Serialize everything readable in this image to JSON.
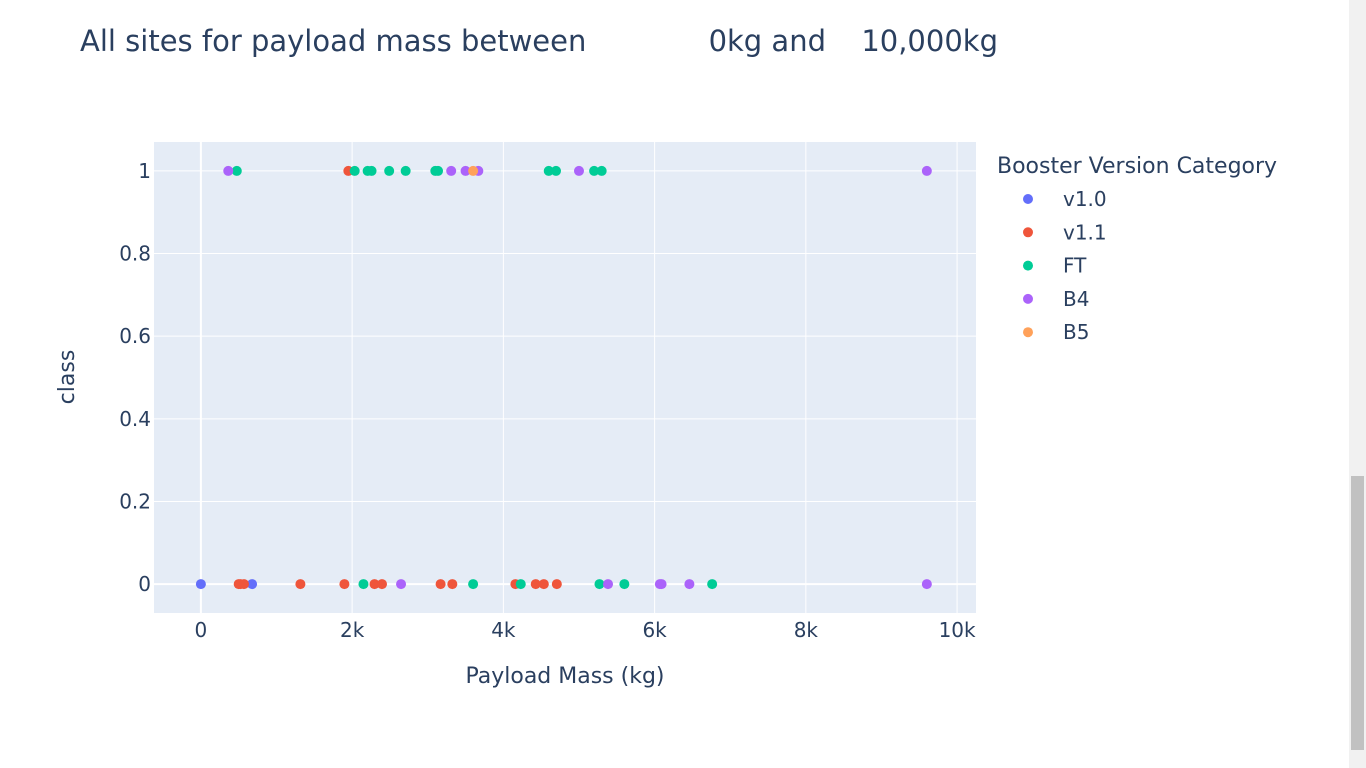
{
  "title": {
    "prefix": "All sites for payload mass between",
    "low": "0kg and",
    "high": "10,000kg"
  },
  "chart_data": {
    "type": "scatter",
    "xlabel": "Payload Mass (kg)",
    "ylabel": "class",
    "xlim": [
      -620,
      10250
    ],
    "ylim": [
      -0.07,
      1.07
    ],
    "x_ticks": [
      {
        "v": 0,
        "label": "0"
      },
      {
        "v": 2000,
        "label": "2k"
      },
      {
        "v": 4000,
        "label": "4k"
      },
      {
        "v": 6000,
        "label": "6k"
      },
      {
        "v": 8000,
        "label": "8k"
      },
      {
        "v": 10000,
        "label": "10k"
      }
    ],
    "y_ticks": [
      {
        "v": 0,
        "label": "0"
      },
      {
        "v": 0.2,
        "label": "0.2"
      },
      {
        "v": 0.4,
        "label": "0.4"
      },
      {
        "v": 0.6,
        "label": "0.6"
      },
      {
        "v": 0.8,
        "label": "0.8"
      },
      {
        "v": 1,
        "label": "1"
      }
    ],
    "grid": true,
    "legend_title": "Booster Version Category",
    "legend_position": "right",
    "series": [
      {
        "name": "v1.0",
        "color": "#636efa",
        "points": [
          [
            0,
            0
          ],
          [
            677,
            0
          ]
        ]
      },
      {
        "name": "v1.1",
        "color": "#ef553b",
        "points": [
          [
            1950,
            1
          ],
          [
            500,
            0
          ],
          [
            525,
            0
          ],
          [
            570,
            0
          ],
          [
            1316,
            0
          ],
          [
            1898,
            0
          ],
          [
            2296,
            0
          ],
          [
            2395,
            0
          ],
          [
            3170,
            0
          ],
          [
            3325,
            0
          ],
          [
            4159,
            0
          ],
          [
            4428,
            0
          ],
          [
            4535,
            0
          ],
          [
            4707,
            0
          ]
        ]
      },
      {
        "name": "FT",
        "color": "#00cc96",
        "points": [
          [
            475,
            1
          ],
          [
            2034,
            1
          ],
          [
            2205,
            1
          ],
          [
            2257,
            1
          ],
          [
            2490,
            1
          ],
          [
            2708,
            1
          ],
          [
            3100,
            1
          ],
          [
            3136,
            1
          ],
          [
            4600,
            1
          ],
          [
            4696,
            1
          ],
          [
            5200,
            1
          ],
          [
            5300,
            1
          ],
          [
            2150,
            0
          ],
          [
            3600,
            0
          ],
          [
            4230,
            0
          ],
          [
            5271,
            0
          ],
          [
            5600,
            0
          ],
          [
            6761,
            0
          ]
        ]
      },
      {
        "name": "B4",
        "color": "#ab63fa",
        "points": [
          [
            362,
            1
          ],
          [
            3310,
            1
          ],
          [
            3500,
            1
          ],
          [
            3669,
            1
          ],
          [
            5000,
            1
          ],
          [
            9600,
            1
          ],
          [
            2647,
            0
          ],
          [
            5384,
            0
          ],
          [
            6070,
            0
          ],
          [
            6092,
            0
          ],
          [
            6460,
            0
          ],
          [
            9600,
            0
          ]
        ]
      },
      {
        "name": "B5",
        "color": "#ffa15a",
        "points": [
          [
            3600,
            1
          ]
        ]
      }
    ]
  }
}
